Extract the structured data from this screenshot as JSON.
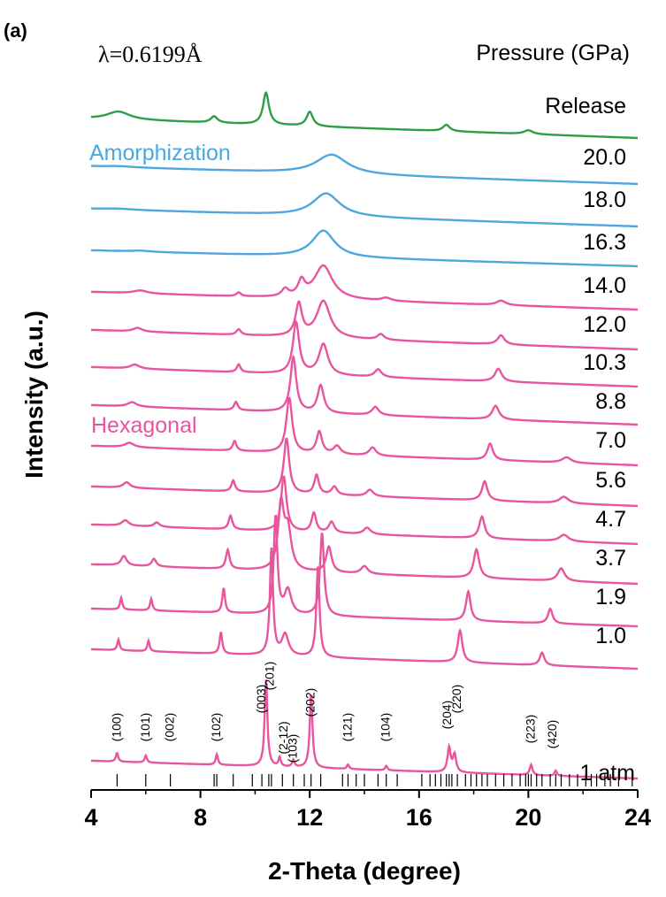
{
  "chart_data": {
    "type": "line",
    "panel_label": "(a)",
    "wavelength_label": "λ=0.6199Å",
    "legend_title": "Pressure (GPa)",
    "xlabel": "2-Theta (degree)",
    "ylabel": "Intensity (a.u.)",
    "xlim": [
      4,
      24
    ],
    "xticks": [
      4,
      8,
      12,
      16,
      20,
      24
    ],
    "grid": false,
    "phase_labels": [
      {
        "text": "Amorphization",
        "color": "#4ba8dd"
      },
      {
        "text": "Hexagonal",
        "color": "#e8559e"
      }
    ],
    "colors": {
      "release": "#2e9e45",
      "amorphous": "#4ba8dd",
      "hexagonal": "#e8559e",
      "axis": "#000000"
    },
    "series": [
      {
        "name": "Release",
        "phase": "release",
        "peaks": [
          [
            5.0,
            0.25,
            0.5
          ],
          [
            8.5,
            0.2,
            0.15
          ],
          [
            10.4,
            1.0,
            0.13
          ],
          [
            12.0,
            0.45,
            0.14
          ],
          [
            17.0,
            0.2,
            0.15
          ],
          [
            20.0,
            0.12,
            0.2
          ]
        ]
      },
      {
        "name": "20.0",
        "phase": "amorphous",
        "peaks": [
          [
            12.8,
            1.0,
            0.7
          ],
          [
            5.0,
            0.05,
            0.6
          ]
        ]
      },
      {
        "name": "18.0",
        "phase": "amorphous",
        "peaks": [
          [
            12.6,
            1.0,
            0.6
          ],
          [
            5.0,
            0.04,
            0.6
          ]
        ]
      },
      {
        "name": "16.3",
        "phase": "amorphous",
        "peaks": [
          [
            12.5,
            1.0,
            0.5
          ],
          [
            5.8,
            0.04,
            0.4
          ]
        ]
      },
      {
        "name": "14.0",
        "phase": "hexagonal",
        "peaks": [
          [
            12.5,
            0.9,
            0.4
          ],
          [
            11.7,
            0.4,
            0.15
          ],
          [
            11.1,
            0.2,
            0.15
          ],
          [
            9.4,
            0.1,
            0.1
          ],
          [
            5.8,
            0.08,
            0.3
          ],
          [
            19.0,
            0.12,
            0.2
          ],
          [
            14.8,
            0.08,
            0.2
          ]
        ]
      },
      {
        "name": "12.0",
        "phase": "hexagonal",
        "peaks": [
          [
            11.6,
            0.7,
            0.14
          ],
          [
            12.5,
            0.8,
            0.3
          ],
          [
            9.4,
            0.12,
            0.1
          ],
          [
            14.6,
            0.12,
            0.15
          ],
          [
            19.0,
            0.2,
            0.15
          ],
          [
            5.7,
            0.08,
            0.2
          ]
        ]
      },
      {
        "name": "10.3",
        "phase": "hexagonal",
        "peaks": [
          [
            11.5,
            1.0,
            0.14
          ],
          [
            12.5,
            0.6,
            0.2
          ],
          [
            9.4,
            0.15,
            0.08
          ],
          [
            14.5,
            0.15,
            0.15
          ],
          [
            18.9,
            0.25,
            0.15
          ],
          [
            5.6,
            0.08,
            0.2
          ]
        ]
      },
      {
        "name": "8.8",
        "phase": "hexagonal",
        "peaks": [
          [
            11.4,
            1.0,
            0.13
          ],
          [
            12.4,
            0.5,
            0.14
          ],
          [
            9.3,
            0.15,
            0.08
          ],
          [
            14.4,
            0.15,
            0.15
          ],
          [
            18.8,
            0.25,
            0.15
          ],
          [
            5.5,
            0.08,
            0.2
          ]
        ]
      },
      {
        "name": "7.0",
        "phase": "hexagonal",
        "peaks": [
          [
            11.25,
            1.0,
            0.13
          ],
          [
            12.35,
            0.4,
            0.12
          ],
          [
            9.25,
            0.18,
            0.08
          ],
          [
            13.0,
            0.15,
            0.15
          ],
          [
            14.3,
            0.15,
            0.15
          ],
          [
            18.6,
            0.3,
            0.12
          ],
          [
            5.4,
            0.08,
            0.2
          ],
          [
            21.4,
            0.1,
            0.2
          ]
        ]
      },
      {
        "name": "5.6",
        "phase": "hexagonal",
        "peaks": [
          [
            11.15,
            1.0,
            0.12
          ],
          [
            12.25,
            0.35,
            0.1
          ],
          [
            9.2,
            0.2,
            0.08
          ],
          [
            12.9,
            0.15,
            0.12
          ],
          [
            14.2,
            0.12,
            0.15
          ],
          [
            18.4,
            0.35,
            0.12
          ],
          [
            5.3,
            0.1,
            0.15
          ],
          [
            21.3,
            0.12,
            0.2
          ]
        ]
      },
      {
        "name": "4.7",
        "phase": "hexagonal",
        "peaks": [
          [
            11.05,
            1.0,
            0.12
          ],
          [
            12.15,
            0.35,
            0.1
          ],
          [
            9.1,
            0.25,
            0.08
          ],
          [
            12.8,
            0.2,
            0.12
          ],
          [
            14.1,
            0.12,
            0.15
          ],
          [
            18.3,
            0.4,
            0.12
          ],
          [
            5.25,
            0.1,
            0.15
          ],
          [
            6.4,
            0.08,
            0.12
          ],
          [
            21.3,
            0.12,
            0.2
          ]
        ]
      },
      {
        "name": "3.7",
        "phase": "hexagonal",
        "peaks": [
          [
            10.95,
            1.0,
            0.13
          ],
          [
            11.2,
            0.6,
            0.15
          ],
          [
            12.7,
            0.4,
            0.12
          ],
          [
            9.0,
            0.3,
            0.08
          ],
          [
            14.0,
            0.12,
            0.15
          ],
          [
            18.1,
            0.45,
            0.12
          ],
          [
            5.2,
            0.15,
            0.12
          ],
          [
            6.3,
            0.12,
            0.1
          ],
          [
            21.2,
            0.2,
            0.15
          ]
        ]
      },
      {
        "name": "1.9",
        "phase": "hexagonal",
        "peaks": [
          [
            10.75,
            1.0,
            0.08
          ],
          [
            12.45,
            0.85,
            0.09
          ],
          [
            8.85,
            0.25,
            0.06
          ],
          [
            17.8,
            0.3,
            0.1
          ],
          [
            5.1,
            0.12,
            0.05
          ],
          [
            6.2,
            0.12,
            0.05
          ],
          [
            11.2,
            0.25,
            0.15
          ],
          [
            20.8,
            0.15,
            0.1
          ]
        ]
      },
      {
        "name": "1.0",
        "phase": "hexagonal",
        "peaks": [
          [
            10.6,
            1.0,
            0.07
          ],
          [
            12.3,
            0.85,
            0.07
          ],
          [
            8.75,
            0.2,
            0.06
          ],
          [
            17.5,
            0.3,
            0.1
          ],
          [
            5.0,
            0.1,
            0.05
          ],
          [
            6.1,
            0.1,
            0.05
          ],
          [
            11.1,
            0.2,
            0.15
          ],
          [
            20.5,
            0.12,
            0.1
          ]
        ]
      },
      {
        "name": "1 atm",
        "phase": "hexagonal",
        "peaks": [
          [
            10.4,
            1.0,
            0.06
          ],
          [
            12.05,
            0.85,
            0.06
          ],
          [
            4.95,
            0.1,
            0.05
          ],
          [
            6.0,
            0.08,
            0.05
          ],
          [
            8.6,
            0.12,
            0.05
          ],
          [
            10.9,
            0.1,
            0.05
          ],
          [
            11.4,
            0.08,
            0.05
          ],
          [
            13.4,
            0.05,
            0.05
          ],
          [
            14.8,
            0.05,
            0.05
          ],
          [
            17.1,
            0.28,
            0.07
          ],
          [
            17.3,
            0.2,
            0.07
          ],
          [
            20.1,
            0.12,
            0.06
          ],
          [
            21.0,
            0.06,
            0.05
          ]
        ]
      }
    ],
    "hkl_labels": [
      {
        "text": "(100)",
        "x": 4.95
      },
      {
        "text": "(101)",
        "x": 6.0
      },
      {
        "text": "(002)",
        "x": 6.9
      },
      {
        "text": "(102)",
        "x": 8.6
      },
      {
        "text": "(003)",
        "x": 10.25
      },
      {
        "text": "(201)",
        "x": 10.55
      },
      {
        "text": "(2-12)",
        "x": 11.05
      },
      {
        "text": "(103)",
        "x": 11.4
      },
      {
        "text": "(202)",
        "x": 12.05
      },
      {
        "text": "(121)",
        "x": 13.4
      },
      {
        "text": "(104)",
        "x": 14.8
      },
      {
        "text": "(204)",
        "x": 17.05
      },
      {
        "text": "(220)",
        "x": 17.4
      },
      {
        "text": "(223)",
        "x": 20.1
      },
      {
        "text": "(420)",
        "x": 20.9
      }
    ],
    "reference_ticks": [
      4.95,
      6.0,
      6.9,
      8.5,
      8.6,
      9.2,
      9.9,
      10.25,
      10.5,
      10.6,
      11.0,
      11.4,
      11.8,
      12.05,
      12.4,
      13.2,
      13.4,
      13.7,
      14.0,
      14.5,
      14.8,
      15.2,
      16.1,
      16.4,
      16.6,
      16.8,
      17.0,
      17.1,
      17.2,
      17.4,
      17.7,
      17.9,
      18.1,
      18.3,
      18.5,
      18.8,
      19.1,
      19.4,
      19.7,
      19.9,
      20.0,
      20.1,
      20.3,
      20.5,
      20.8,
      21.0,
      21.2,
      21.5,
      21.8,
      22.1,
      22.3,
      22.5,
      22.8,
      23.0,
      23.3,
      23.8
    ]
  }
}
